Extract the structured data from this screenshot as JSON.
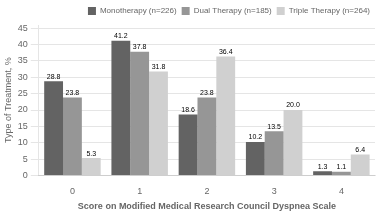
{
  "chart_data": {
    "type": "bar",
    "categories": [
      "0",
      "1",
      "2",
      "3",
      "4"
    ],
    "series": [
      {
        "name": "Monotherapy (n=226)",
        "color": "#636363",
        "values": [
          28.8,
          41.2,
          18.6,
          10.2,
          1.3
        ]
      },
      {
        "name": "Dual Therapy (n=185)",
        "color": "#969696",
        "values": [
          23.8,
          37.8,
          23.8,
          13.5,
          1.1
        ]
      },
      {
        "name": "Triple Therapy (n=264)",
        "color": "#d0d0d0",
        "values": [
          5.3,
          31.8,
          36.4,
          20.0,
          6.4
        ],
        "value_labels": [
          "5.3",
          "31.8",
          "36.4",
          "20.0",
          "6.4"
        ]
      }
    ],
    "xlabel": "Score on Modified Medical Research Council Dyspnea Scale",
    "ylabel": "Type of Treatment, %",
    "ylim": [
      0,
      46
    ],
    "yticks": [
      0,
      5,
      10,
      15,
      20,
      25,
      30,
      35,
      40,
      45
    ],
    "grid": true,
    "legend": "upper right",
    "data_labels": true
  }
}
